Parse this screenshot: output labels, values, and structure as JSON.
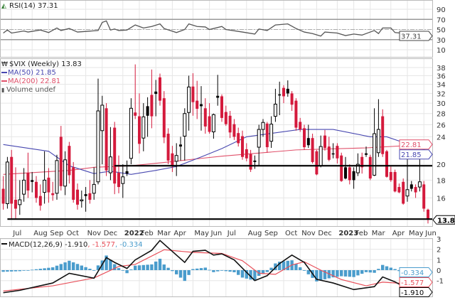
{
  "rsi_panel": {
    "legend": "RSI(14) 37.31",
    "ticks": [
      90,
      70,
      50,
      30,
      10
    ],
    "overbought": 70,
    "midline": 50,
    "oversold": 30,
    "last_tag": "37.31",
    "line_color": "#555555",
    "series": [
      [
        "2021-06-18",
        43
      ],
      [
        "2021-06-25",
        49
      ],
      [
        "2021-07-02",
        43
      ],
      [
        "2021-07-23",
        47
      ],
      [
        "2021-07-30",
        45
      ],
      [
        "2021-08-20",
        49
      ],
      [
        "2021-09-03",
        44
      ],
      [
        "2021-09-17",
        53
      ],
      [
        "2021-09-24",
        48
      ],
      [
        "2021-10-08",
        52
      ],
      [
        "2021-10-22",
        45
      ],
      [
        "2021-11-26",
        48
      ],
      [
        "2021-12-03",
        64
      ],
      [
        "2021-12-10",
        67
      ],
      [
        "2021-12-17",
        49
      ],
      [
        "2021-12-24",
        51
      ],
      [
        "2021-12-31",
        48
      ],
      [
        "2022-01-14",
        49
      ],
      [
        "2022-01-28",
        59
      ],
      [
        "2022-02-11",
        53
      ],
      [
        "2022-02-25",
        56
      ],
      [
        "2022-03-11",
        61
      ],
      [
        "2022-03-18",
        52
      ],
      [
        "2022-04-08",
        44
      ],
      [
        "2022-04-22",
        50
      ],
      [
        "2022-04-29",
        61
      ],
      [
        "2022-05-13",
        56
      ],
      [
        "2022-05-27",
        55
      ],
      [
        "2022-06-03",
        50
      ],
      [
        "2022-06-24",
        56
      ],
      [
        "2022-07-01",
        50
      ],
      [
        "2022-07-29",
        45
      ],
      [
        "2022-08-19",
        41
      ],
      [
        "2022-08-26",
        51
      ],
      [
        "2022-09-09",
        48
      ],
      [
        "2022-09-23",
        59
      ],
      [
        "2022-10-14",
        61
      ],
      [
        "2022-10-28",
        52
      ],
      [
        "2022-11-11",
        45
      ],
      [
        "2022-11-25",
        42
      ],
      [
        "2022-12-09",
        37
      ],
      [
        "2022-12-16",
        45
      ],
      [
        "2023-01-06",
        43
      ],
      [
        "2023-01-20",
        38
      ],
      [
        "2023-02-03",
        41
      ],
      [
        "2023-02-17",
        39
      ],
      [
        "2023-03-03",
        45
      ],
      [
        "2023-03-10",
        48
      ],
      [
        "2023-03-17",
        42
      ],
      [
        "2023-03-24",
        53
      ],
      [
        "2023-04-07",
        53
      ],
      [
        "2023-04-14",
        44
      ],
      [
        "2023-05-12",
        41
      ],
      [
        "2023-05-26",
        42
      ],
      [
        "2023-06-02",
        45
      ],
      [
        "2023-06-09",
        37.31
      ]
    ]
  },
  "price_panel": {
    "legend_title": "$VIX (Weekly) 13.83",
    "legend_ma50": "MA(50) 21.85",
    "legend_ma200": "MA(200) 22.81",
    "legend_volume": "Volume undef",
    "scale": "log",
    "ticks": [
      38,
      36,
      34,
      32,
      30,
      28,
      26,
      24,
      20,
      18,
      16
    ],
    "tags": {
      "ma200": "22.81",
      "ma50": "21.85",
      "close": "13.83"
    },
    "colors": {
      "down": "#d41a3c",
      "up": "#000000",
      "ma50": "#4848b0",
      "ma200": "#e0506a"
    },
    "support_lines": [
      {
        "level": 19.8,
        "from": "2021-12-24"
      },
      {
        "level": 13.9,
        "from": "2021-06-25"
      }
    ],
    "ma50": [
      [
        "2021-06-18",
        22.8
      ],
      [
        "2021-09-03",
        21.8
      ],
      [
        "2021-10-08",
        19.8
      ],
      [
        "2021-11-19",
        18.8
      ],
      [
        "2021-12-17",
        19.1
      ],
      [
        "2022-01-21",
        18.7
      ],
      [
        "2022-03-04",
        19.2
      ],
      [
        "2022-04-08",
        19.7
      ],
      [
        "2022-05-20",
        21.0
      ],
      [
        "2022-06-24",
        22.2
      ],
      [
        "2022-08-05",
        24.0
      ],
      [
        "2022-11-04",
        25.2
      ],
      [
        "2022-12-30",
        25.2
      ],
      [
        "2023-03-03",
        24.0
      ],
      [
        "2023-03-31",
        24.0
      ],
      [
        "2023-05-12",
        22.7
      ],
      [
        "2023-06-09",
        21.85
      ]
    ],
    "ma200": [
      [
        "2021-06-18",
        18.7
      ],
      [
        "2021-10-08",
        19.2
      ],
      [
        "2021-11-19",
        19.6
      ],
      [
        "2022-01-21",
        19.8
      ],
      [
        "2022-03-25",
        20.3
      ],
      [
        "2022-05-20",
        20.8
      ],
      [
        "2022-06-24",
        21.1
      ],
      [
        "2022-10-28",
        22.0
      ],
      [
        "2023-02-24",
        22.3
      ],
      [
        "2023-06-09",
        22.81
      ]
    ]
  },
  "x_axis": {
    "months": [
      [
        "2021-07-02",
        "Jul"
      ],
      [
        "2021-08-06",
        "Aug"
      ],
      [
        "2021-09-03",
        "Sep"
      ],
      [
        "2021-10-01",
        "Oct"
      ],
      [
        "2021-11-05",
        "Nov"
      ],
      [
        "2021-12-03",
        "Dec"
      ],
      [
        "2022-01-07",
        "2022"
      ],
      [
        "2022-02-04",
        "Feb"
      ],
      [
        "2022-03-04",
        "Mar"
      ],
      [
        "2022-04-01",
        "Apr"
      ],
      [
        "2022-05-06",
        "May"
      ],
      [
        "2022-06-03",
        "Jun"
      ],
      [
        "2022-07-01",
        "Jul"
      ],
      [
        "2022-08-05",
        "Aug"
      ],
      [
        "2022-09-02",
        "Sep"
      ],
      [
        "2022-10-07",
        "Oct"
      ],
      [
        "2022-11-04",
        "Nov"
      ],
      [
        "2022-12-02",
        "Dec"
      ],
      [
        "2023-01-06",
        "2023"
      ],
      [
        "2023-02-03",
        "Feb"
      ],
      [
        "2023-03-03",
        "Mar"
      ],
      [
        "2023-04-07",
        "Apr"
      ],
      [
        "2023-05-05",
        "May"
      ],
      [
        "2023-06-02",
        "Jun"
      ]
    ]
  },
  "macd_panel": {
    "legend_name": "MACD(12,26,9)",
    "legend_macd": "-1.910",
    "legend_signal": "-1.577",
    "legend_hist": "-0.334",
    "ticks": [
      3,
      2,
      1,
      0,
      -1
    ],
    "tags": {
      "hist": "-0.334",
      "signal": "-1.577",
      "macd": "-1.910"
    },
    "colors": {
      "macd": "#111111",
      "signal": "#e8505a",
      "hist": "#4a9ccc"
    },
    "macd": [
      [
        "2021-06-18",
        -2.16
      ],
      [
        "2021-07-16",
        -1.93
      ],
      [
        "2021-09-10",
        -1.23
      ],
      [
        "2021-10-08",
        -0.3
      ],
      [
        "2021-11-19",
        -0.77
      ],
      [
        "2021-12-10",
        1.2
      ],
      [
        "2021-12-24",
        0.74
      ],
      [
        "2022-01-14",
        0.16
      ],
      [
        "2022-01-28",
        0.98
      ],
      [
        "2022-02-25",
        1.9
      ],
      [
        "2022-03-11",
        2.84
      ],
      [
        "2022-04-08",
        1.44
      ],
      [
        "2022-04-22",
        0.74
      ],
      [
        "2022-05-06",
        1.8
      ],
      [
        "2022-05-27",
        1.9
      ],
      [
        "2022-06-10",
        1.44
      ],
      [
        "2022-06-24",
        1.56
      ],
      [
        "2022-07-15",
        0.98
      ],
      [
        "2022-08-19",
        -1.0
      ],
      [
        "2022-09-09",
        -0.53
      ],
      [
        "2022-09-30",
        0.63
      ],
      [
        "2022-10-21",
        1.44
      ],
      [
        "2022-11-11",
        0.74
      ],
      [
        "2022-12-02",
        -0.88
      ],
      [
        "2022-12-30",
        -1.23
      ],
      [
        "2023-02-03",
        -1.86
      ],
      [
        "2023-03-10",
        -1.58
      ],
      [
        "2023-03-24",
        -0.65
      ],
      [
        "2023-04-14",
        -1.12
      ],
      [
        "2023-05-05",
        -1.77
      ],
      [
        "2023-05-26",
        -1.77
      ],
      [
        "2023-06-09",
        -1.91
      ]
    ],
    "signal": [
      [
        "2021-06-18",
        -2.0
      ],
      [
        "2021-09-10",
        -1.5
      ],
      [
        "2021-11-19",
        -0.75
      ],
      [
        "2021-12-31",
        0.35
      ],
      [
        "2022-01-28",
        0.55
      ],
      [
        "2022-03-18",
        1.95
      ],
      [
        "2022-05-06",
        1.7
      ],
      [
        "2022-06-24",
        1.6
      ],
      [
        "2022-07-29",
        0.9
      ],
      [
        "2022-08-26",
        -0.3
      ],
      [
        "2022-09-23",
        -0.4
      ],
      [
        "2022-10-21",
        0.5
      ],
      [
        "2022-11-11",
        0.8
      ],
      [
        "2022-12-09",
        0.0
      ],
      [
        "2023-01-13",
        -0.9
      ],
      [
        "2023-02-24",
        -1.5
      ],
      [
        "2023-03-24",
        -1.15
      ],
      [
        "2023-05-05",
        -1.3
      ],
      [
        "2023-06-09",
        -1.577
      ]
    ]
  },
  "chart_data": {
    "type": "candlestick",
    "title": "$VIX (Weekly) 13.83",
    "columns": [
      "date",
      "open",
      "high",
      "low",
      "close"
    ],
    "candles": [
      [
        "2021-06-18",
        17.0,
        18.5,
        14.8,
        15.4
      ],
      [
        "2021-06-25",
        15.4,
        21.0,
        14.9,
        20.3
      ],
      [
        "2021-07-02",
        21.0,
        22.0,
        13.9,
        15.4
      ],
      [
        "2021-07-09",
        15.8,
        19.6,
        13.9,
        14.9
      ],
      [
        "2021-07-16",
        15.3,
        18.0,
        14.3,
        15.8
      ],
      [
        "2021-07-23",
        16.4,
        19.5,
        15.6,
        18.0
      ],
      [
        "2021-07-30",
        18.9,
        21.6,
        16.0,
        16.8
      ],
      [
        "2021-08-06",
        18.0,
        19.0,
        16.6,
        17.8
      ],
      [
        "2021-08-13",
        17.8,
        18.5,
        15.5,
        16.0
      ],
      [
        "2021-08-20",
        16.2,
        17.5,
        14.7,
        15.2
      ],
      [
        "2021-08-27",
        16.6,
        21.8,
        15.4,
        18.0
      ],
      [
        "2021-09-03",
        18.3,
        19.5,
        15.5,
        16.6
      ],
      [
        "2021-09-10",
        16.5,
        17.8,
        15.7,
        16.3
      ],
      [
        "2021-09-17",
        16.5,
        21.3,
        15.8,
        20.5
      ],
      [
        "2021-09-24",
        24.0,
        25.8,
        16.8,
        17.3
      ],
      [
        "2021-10-01",
        17.3,
        21.8,
        16.3,
        20.6
      ],
      [
        "2021-10-08",
        22.6,
        23.2,
        17.6,
        18.6
      ],
      [
        "2021-10-15",
        19.6,
        20.3,
        15.5,
        15.8
      ],
      [
        "2021-10-22",
        16.9,
        17.6,
        14.8,
        15.3
      ],
      [
        "2021-10-29",
        15.8,
        16.8,
        15.0,
        15.8
      ],
      [
        "2021-11-05",
        16.4,
        17.2,
        14.6,
        16.2
      ],
      [
        "2021-11-12",
        16.5,
        18.0,
        15.4,
        15.8
      ],
      [
        "2021-11-19",
        16.5,
        19.6,
        15.8,
        17.5
      ],
      [
        "2021-11-26",
        17.8,
        35.3,
        17.5,
        28.5
      ],
      [
        "2021-12-03",
        25.0,
        31.5,
        20.0,
        29.6
      ],
      [
        "2021-12-10",
        29.0,
        30.0,
        18.5,
        19.2
      ],
      [
        "2021-12-17",
        18.9,
        25.6,
        18.0,
        21.0
      ],
      [
        "2021-12-24",
        25.5,
        26.5,
        16.4,
        17.6
      ],
      [
        "2021-12-31",
        18.9,
        21.2,
        16.5,
        17.2
      ],
      [
        "2022-01-07",
        17.6,
        20.0,
        16.0,
        18.4
      ],
      [
        "2022-01-14",
        19.1,
        20.5,
        18.5,
        18.8
      ],
      [
        "2022-01-21",
        20.8,
        31.0,
        20.0,
        29.0
      ],
      [
        "2022-01-28",
        28.2,
        38.8,
        27.0,
        27.6
      ],
      [
        "2022-02-04",
        27.5,
        32.0,
        21.5,
        22.9
      ],
      [
        "2022-02-11",
        23.8,
        30.0,
        21.8,
        27.4
      ],
      [
        "2022-02-18",
        29.4,
        31.2,
        24.0,
        27.6
      ],
      [
        "2022-02-25",
        31.7,
        37.5,
        25.4,
        27.5
      ],
      [
        "2022-03-04",
        32.4,
        35.0,
        27.5,
        31.9
      ],
      [
        "2022-03-11",
        35.6,
        36.5,
        29.5,
        30.5
      ],
      [
        "2022-03-18",
        31.0,
        32.5,
        23.0,
        23.9
      ],
      [
        "2022-03-25",
        24.5,
        25.4,
        20.0,
        20.5
      ],
      [
        "2022-04-01",
        21.5,
        22.6,
        19.0,
        19.7
      ],
      [
        "2022-04-08",
        20.4,
        23.0,
        18.5,
        21.2
      ],
      [
        "2022-04-15",
        22.8,
        24.0,
        20.5,
        22.5
      ],
      [
        "2022-04-22",
        24.1,
        29.0,
        20.5,
        28.0
      ],
      [
        "2022-04-29",
        28.2,
        36.0,
        25.0,
        33.4
      ],
      [
        "2022-05-06",
        33.5,
        36.6,
        27.6,
        30.2
      ],
      [
        "2022-05-13",
        30.5,
        34.8,
        27.0,
        28.9
      ],
      [
        "2022-05-20",
        29.8,
        33.6,
        25.0,
        29.4
      ],
      [
        "2022-05-27",
        29.0,
        31.0,
        24.5,
        25.7
      ],
      [
        "2022-06-03",
        27.5,
        30.0,
        24.5,
        24.8
      ],
      [
        "2022-06-10",
        24.8,
        28.0,
        23.7,
        27.8
      ],
      [
        "2022-06-17",
        31.5,
        36.2,
        29.5,
        31.1
      ],
      [
        "2022-06-24",
        31.4,
        31.8,
        26.5,
        27.2
      ],
      [
        "2022-07-01",
        28.3,
        29.5,
        25.8,
        26.1
      ],
      [
        "2022-07-08",
        27.6,
        28.5,
        23.8,
        24.7
      ],
      [
        "2022-07-15",
        26.1,
        27.0,
        23.5,
        24.0
      ],
      [
        "2022-07-22",
        24.6,
        25.5,
        22.5,
        23.0
      ],
      [
        "2022-07-29",
        24.1,
        25.0,
        20.6,
        21.0
      ],
      [
        "2022-08-05",
        22.1,
        23.0,
        20.4,
        20.8
      ],
      [
        "2022-08-12",
        21.4,
        22.0,
        19.0,
        19.3
      ],
      [
        "2022-08-19",
        20.5,
        21.2,
        19.4,
        20.3
      ],
      [
        "2022-08-26",
        22.4,
        26.0,
        19.8,
        25.2
      ],
      [
        "2022-09-02",
        25.2,
        27.0,
        24.0,
        26.4
      ],
      [
        "2022-09-09",
        26.2,
        26.5,
        21.6,
        22.4
      ],
      [
        "2022-09-16",
        23.3,
        27.5,
        22.3,
        26.1
      ],
      [
        "2022-09-23",
        27.5,
        33.0,
        26.5,
        29.8
      ],
      [
        "2022-09-30",
        31.8,
        34.6,
        27.7,
        31.6
      ],
      [
        "2022-10-07",
        33.2,
        33.8,
        30.0,
        31.4
      ],
      [
        "2022-10-14",
        33.0,
        34.9,
        31.3,
        32.0
      ],
      [
        "2022-10-21",
        32.0,
        32.5,
        28.5,
        29.7
      ],
      [
        "2022-10-28",
        30.5,
        31.0,
        25.0,
        25.5
      ],
      [
        "2022-11-04",
        26.5,
        27.2,
        24.8,
        25.2
      ],
      [
        "2022-11-11",
        25.4,
        26.0,
        22.0,
        22.4
      ],
      [
        "2022-11-18",
        23.8,
        26.0,
        22.3,
        22.7
      ],
      [
        "2022-11-25",
        23.8,
        24.5,
        20.1,
        20.3
      ],
      [
        "2022-12-02",
        21.8,
        22.0,
        18.6,
        18.7
      ],
      [
        "2022-12-09",
        19.8,
        24.2,
        19.6,
        22.5
      ],
      [
        "2022-12-16",
        24.2,
        25.1,
        21.9,
        22.3
      ],
      [
        "2022-12-23",
        22.5,
        24.0,
        20.4,
        20.6
      ],
      [
        "2022-12-30",
        21.5,
        23.0,
        20.8,
        21.4
      ],
      [
        "2023-01-06",
        22.6,
        23.0,
        20.1,
        20.8
      ],
      [
        "2023-01-13",
        21.2,
        21.6,
        17.8,
        17.9
      ],
      [
        "2023-01-20",
        19.6,
        21.0,
        18.1,
        18.2
      ],
      [
        "2023-01-27",
        19.6,
        20.0,
        17.5,
        18.0
      ],
      [
        "2023-02-03",
        19.1,
        19.6,
        17.0,
        18.0
      ],
      [
        "2023-02-10",
        18.9,
        21.5,
        18.5,
        20.0
      ],
      [
        "2023-02-17",
        21.0,
        21.6,
        18.8,
        19.6
      ],
      [
        "2023-02-24",
        21.5,
        22.5,
        21.0,
        21.3
      ],
      [
        "2023-03-03",
        21.0,
        21.3,
        18.0,
        18.2
      ],
      [
        "2023-03-10",
        18.6,
        29.0,
        18.5,
        24.5
      ],
      [
        "2023-03-17",
        21.6,
        30.8,
        21.0,
        25.2
      ],
      [
        "2023-03-24",
        27.5,
        28.8,
        21.0,
        21.4
      ],
      [
        "2023-03-31",
        21.8,
        22.0,
        18.3,
        18.4
      ],
      [
        "2023-04-07",
        19.0,
        19.7,
        17.8,
        18.0
      ],
      [
        "2023-04-14",
        19.0,
        19.3,
        16.6,
        16.7
      ],
      [
        "2023-04-21",
        17.2,
        17.6,
        16.5,
        16.6
      ],
      [
        "2023-04-28",
        17.8,
        18.2,
        15.3,
        15.4
      ],
      [
        "2023-05-05",
        16.2,
        21.2,
        15.6,
        16.9
      ],
      [
        "2023-05-12",
        17.5,
        17.9,
        16.7,
        17.0
      ],
      [
        "2023-05-19",
        17.2,
        17.5,
        16.0,
        16.6
      ],
      [
        "2023-05-26",
        17.2,
        20.8,
        16.7,
        17.8
      ],
      [
        "2023-06-02",
        17.5,
        17.9,
        14.6,
        14.9
      ],
      [
        "2023-06-09",
        14.8,
        14.9,
        13.5,
        13.83
      ]
    ],
    "grid": true
  }
}
